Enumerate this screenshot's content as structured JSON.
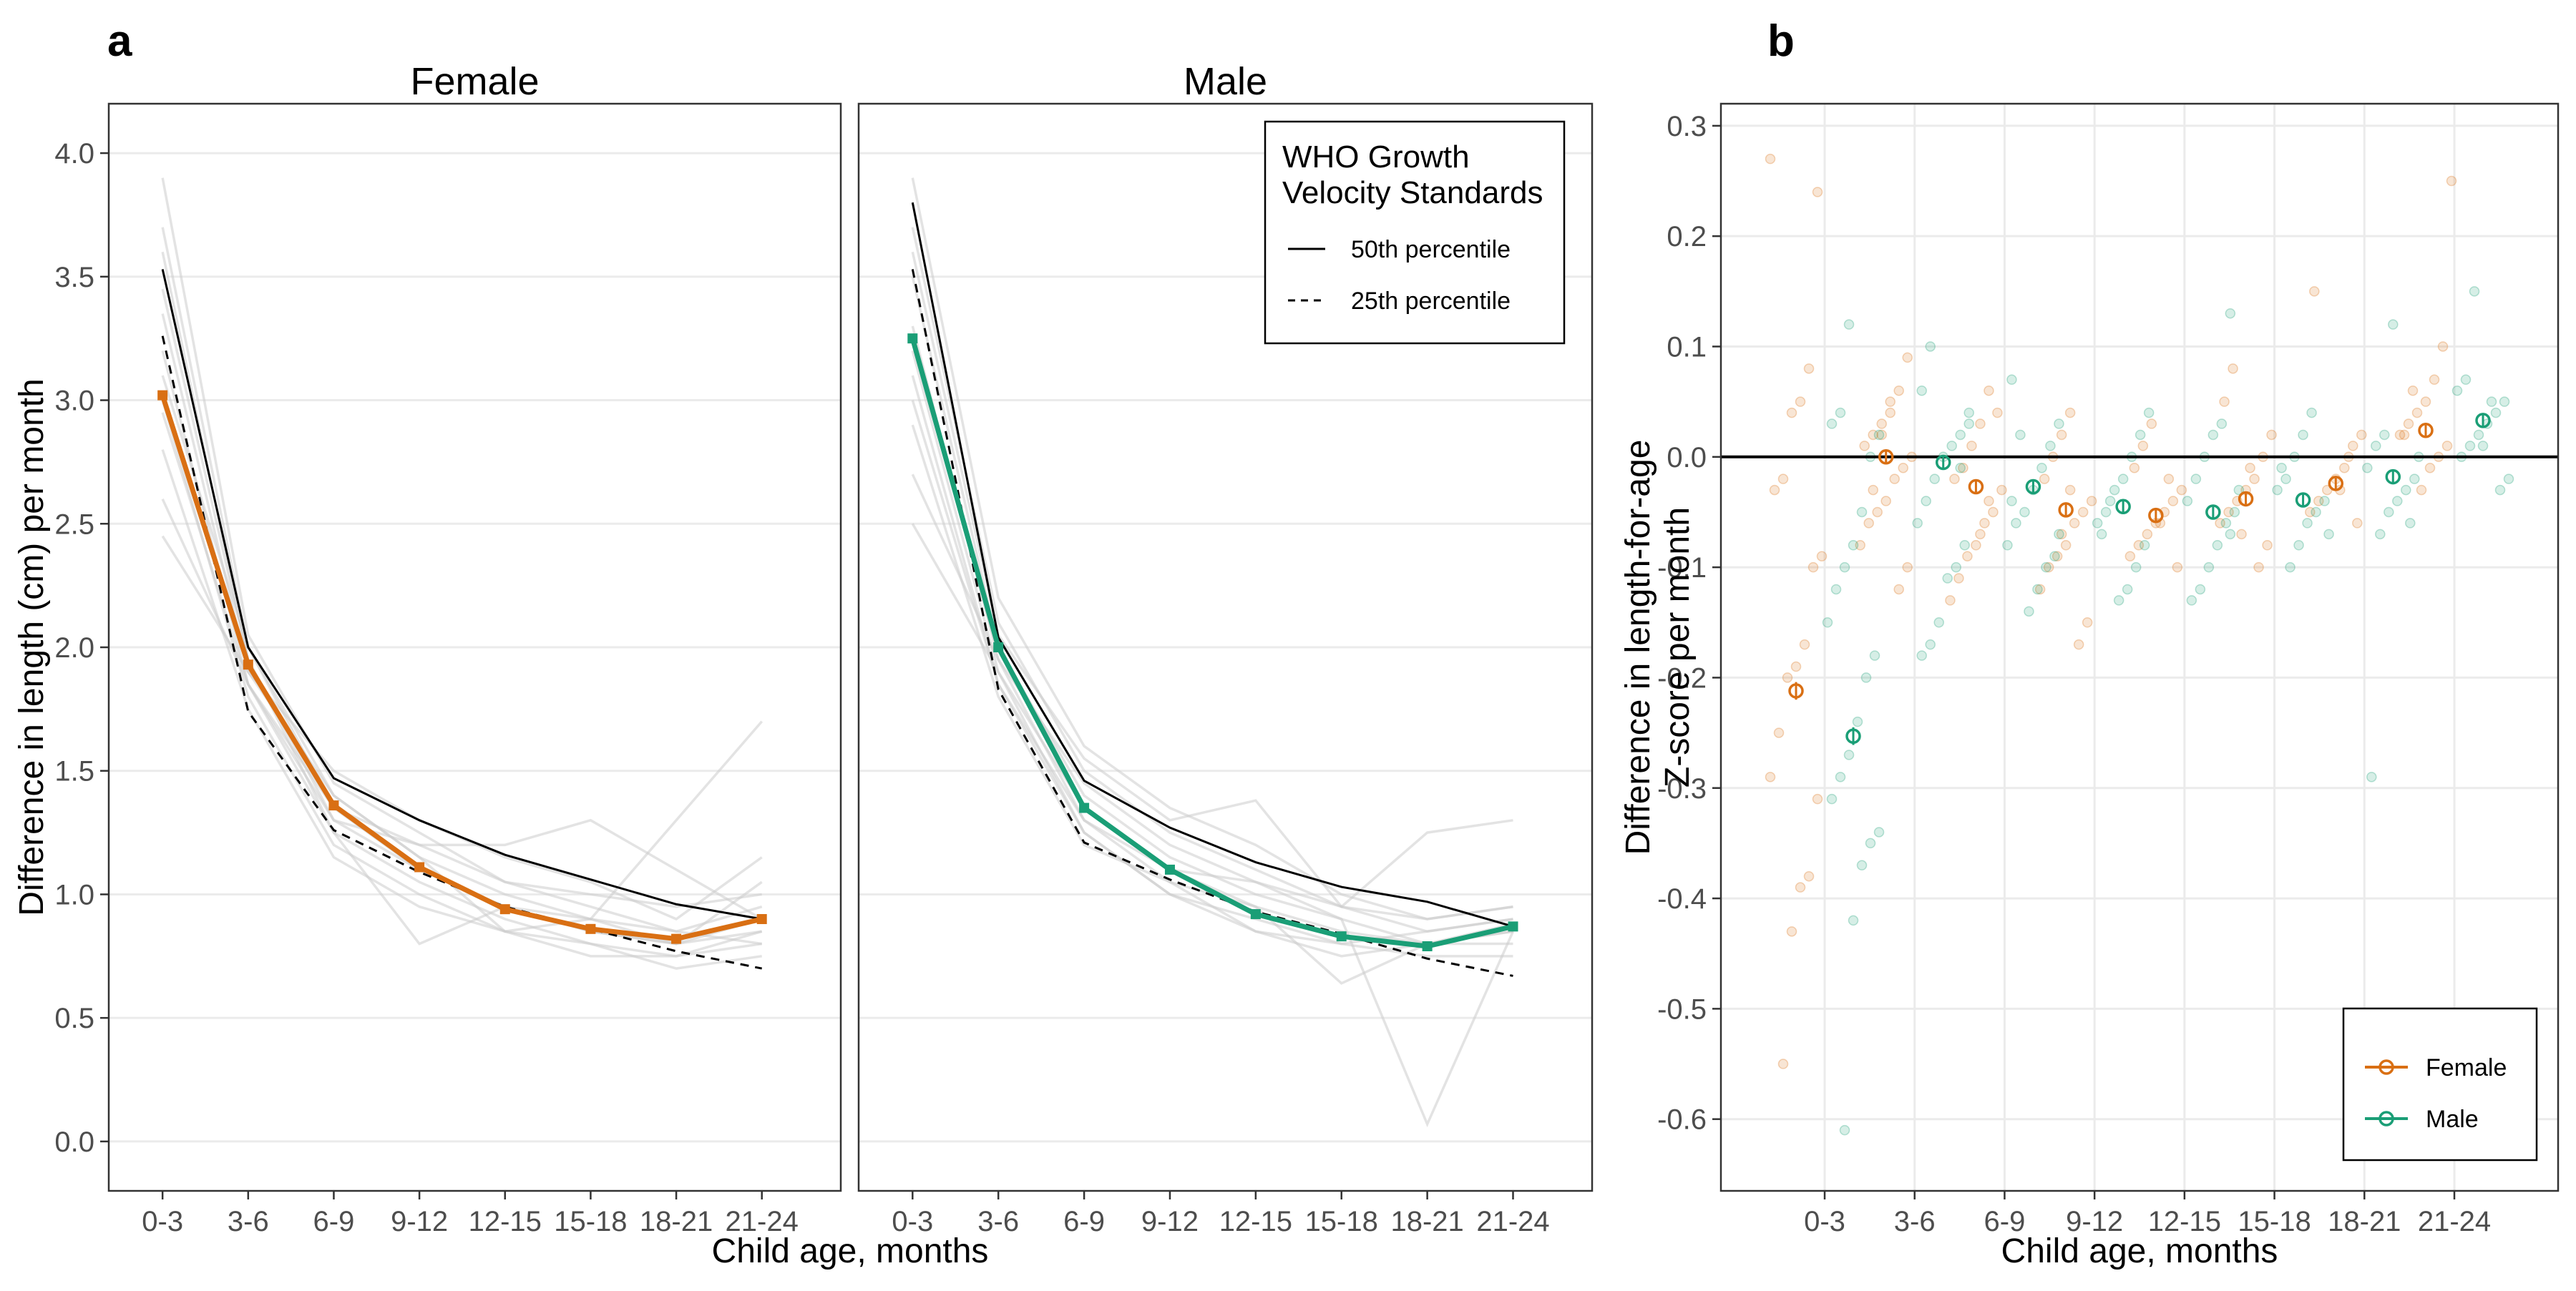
{
  "figure": {
    "panel_a_letter": "a",
    "panel_b_letter": "b"
  },
  "chart_data": [
    {
      "type": "line",
      "panel": "a",
      "facets": [
        "Female",
        "Male"
      ],
      "categories": [
        "0-3",
        "3-6",
        "6-9",
        "9-12",
        "12-15",
        "15-18",
        "18-21",
        "21-24"
      ],
      "xlabel": "Child age, months",
      "ylabel": "Difference in length (cm) per month",
      "ylim": [
        -0.2,
        4.2
      ],
      "yticks": [
        0.0,
        0.5,
        1.0,
        1.5,
        2.0,
        2.5,
        3.0,
        3.5,
        4.0
      ],
      "tick_labels": [
        "0.0",
        "0.5",
        "1.0",
        "1.5",
        "2.0",
        "2.5",
        "3.0",
        "3.5",
        "4.0"
      ],
      "grid": true,
      "legend": {
        "title_line1": "WHO Growth",
        "title_line2": "Velocity Standards",
        "items": [
          "50th percentile",
          "25th percentile"
        ],
        "placement": "top-right of Male facet"
      },
      "colors": {
        "Female": "#d96f13",
        "Male": "#1a9e76",
        "individual": "#cccccc",
        "who": "#000000"
      },
      "series": [
        {
          "name": "Female",
          "values": [
            3.02,
            1.93,
            1.36,
            1.11,
            0.94,
            0.86,
            0.82,
            0.9
          ]
        },
        {
          "name": "Male",
          "values": [
            3.25,
            2.0,
            1.35,
            1.1,
            0.92,
            0.83,
            0.79,
            0.87
          ]
        }
      ],
      "who_reference": {
        "Female": {
          "p50": [
            3.53,
            2.0,
            1.47,
            1.3,
            1.16,
            1.06,
            0.96,
            0.9
          ],
          "p25": [
            3.26,
            1.74,
            1.26,
            1.09,
            0.95,
            0.86,
            0.77,
            0.7
          ]
        },
        "Male": {
          "p50": [
            3.8,
            2.04,
            1.46,
            1.27,
            1.13,
            1.03,
            0.97,
            0.87
          ],
          "p25": [
            3.53,
            1.83,
            1.21,
            1.06,
            0.93,
            0.84,
            0.74,
            0.67
          ]
        }
      },
      "individual_lines": {
        "Female": [
          [
            3.9,
            2.05,
            1.45,
            1.25,
            1.05,
            0.95,
            0.85,
            0.95
          ],
          [
            3.7,
            2.0,
            1.4,
            1.15,
            1.0,
            0.9,
            0.8,
            0.85
          ],
          [
            3.45,
            1.95,
            1.3,
            1.1,
            0.95,
            0.85,
            0.8,
            0.9
          ],
          [
            3.2,
            1.85,
            1.25,
            1.05,
            0.9,
            0.8,
            0.75,
            0.8
          ],
          [
            3.0,
            1.8,
            1.2,
            1.0,
            0.85,
            0.8,
            0.7,
            0.75
          ],
          [
            2.8,
            1.75,
            1.15,
            0.95,
            0.85,
            0.75,
            0.75,
            0.85
          ],
          [
            2.6,
            1.85,
            1.35,
            1.2,
            1.05,
            1.0,
            0.95,
            1.0
          ],
          [
            2.45,
            1.9,
            1.5,
            1.3,
            1.15,
            1.05,
            0.9,
            1.15
          ],
          [
            3.1,
            2.0,
            1.35,
            1.1,
            0.95,
            0.9,
            1.3,
            1.7
          ],
          [
            2.95,
            1.85,
            1.3,
            1.2,
            1.2,
            1.3,
            1.1,
            0.9
          ],
          [
            3.6,
            1.95,
            1.25,
            0.8,
            0.95,
            0.85,
            0.8,
            1.05
          ],
          [
            3.35,
            1.9,
            1.4,
            1.15,
            0.85,
            0.9,
            0.85,
            0.8
          ]
        ],
        "Male": [
          [
            3.9,
            2.2,
            1.6,
            1.35,
            1.2,
            1.0,
            0.9,
            0.95
          ],
          [
            3.7,
            2.1,
            1.5,
            1.25,
            1.1,
            0.95,
            0.85,
            0.9
          ],
          [
            3.5,
            2.0,
            1.4,
            1.15,
            1.0,
            0.9,
            0.8,
            0.85
          ],
          [
            3.3,
            1.95,
            1.3,
            1.05,
            0.95,
            0.85,
            0.8,
            0.8
          ],
          [
            3.1,
            1.85,
            1.25,
            1.0,
            0.9,
            0.8,
            0.75,
            0.75
          ],
          [
            2.9,
            1.8,
            1.2,
            1.05,
            0.85,
            0.8,
            0.85,
            0.9
          ],
          [
            2.7,
            1.95,
            1.45,
            1.2,
            1.05,
            0.95,
            1.25,
            1.3
          ],
          [
            2.5,
            1.9,
            1.35,
            1.1,
            1.05,
            0.9,
            0.07,
            0.85
          ],
          [
            3.6,
            2.05,
            1.55,
            1.3,
            1.38,
            0.95,
            0.9,
            0.95
          ],
          [
            3.2,
            1.9,
            1.25,
            1.0,
            0.85,
            0.75,
            0.8,
            0.85
          ],
          [
            3.0,
            1.85,
            1.3,
            1.1,
            0.95,
            0.64,
            0.8,
            0.88
          ]
        ]
      }
    },
    {
      "type": "scatter",
      "panel": "b",
      "categories": [
        "0-3",
        "3-6",
        "6-9",
        "9-12",
        "12-15",
        "15-18",
        "18-21",
        "21-24"
      ],
      "xlabel": "Child age, months",
      "ylabel_line1": "Difference in length-for-age",
      "ylabel_line2": "Z-score per month",
      "ylim": [
        -0.665,
        0.32
      ],
      "yticks": [
        -0.6,
        -0.5,
        -0.4,
        -0.3,
        -0.2,
        -0.1,
        0.0,
        0.1,
        0.2,
        0.3
      ],
      "tick_labels": [
        "-0.6",
        "-0.5",
        "-0.4",
        "-0.3",
        "-0.2",
        "-0.1",
        "0.0",
        "0.1",
        "0.2",
        "0.3"
      ],
      "grid": true,
      "reference_line": 0.0,
      "legend": {
        "items": [
          "Female",
          "Male"
        ],
        "placement": "bottom-right"
      },
      "colors": {
        "Female": "#d96f13",
        "Male": "#1a9e76"
      },
      "series": [
        {
          "name": "Female",
          "means": [
            -0.212,
            0.0,
            -0.027,
            -0.048,
            -0.053,
            -0.038,
            -0.024,
            0.024
          ],
          "ci_halfwidth": [
            0.008,
            0.006,
            0.006,
            0.006,
            0.006,
            0.006,
            0.006,
            0.006
          ],
          "points": [
            [
              0.27,
              0.24,
              0.08,
              0.05,
              0.04,
              -0.02,
              -0.03,
              -0.09,
              -0.1,
              -0.17,
              -0.19,
              -0.2,
              -0.25,
              -0.29,
              -0.31,
              -0.38,
              -0.39,
              -0.43,
              -0.55
            ],
            [
              0.09,
              0.06,
              0.04,
              0.03,
              0.02,
              0.01,
              0.0,
              -0.01,
              -0.02,
              -0.04,
              -0.05,
              -0.06,
              -0.08,
              -0.1,
              -0.12,
              0.05,
              0.02,
              -0.03
            ],
            [
              0.06,
              0.03,
              0.01,
              -0.01,
              -0.02,
              -0.03,
              -0.05,
              -0.06,
              -0.08,
              -0.09,
              -0.11,
              -0.13,
              0.04,
              -0.04,
              -0.07
            ],
            [
              0.04,
              0.02,
              0.0,
              -0.02,
              -0.04,
              -0.05,
              -0.06,
              -0.08,
              -0.09,
              -0.1,
              -0.12,
              -0.15,
              -0.17,
              -0.03,
              -0.07
            ],
            [
              0.03,
              0.01,
              -0.01,
              -0.03,
              -0.04,
              -0.05,
              -0.06,
              -0.07,
              -0.08,
              -0.09,
              -0.1,
              -0.02,
              -0.06
            ],
            [
              0.08,
              0.05,
              0.02,
              0.0,
              -0.02,
              -0.03,
              -0.04,
              -0.05,
              -0.06,
              -0.08,
              -0.1,
              -0.01,
              -0.07
            ],
            [
              0.15,
              0.02,
              0.01,
              -0.01,
              -0.02,
              -0.03,
              -0.04,
              -0.05,
              -0.06,
              0.0,
              -0.03
            ],
            [
              0.25,
              0.1,
              0.07,
              0.05,
              0.04,
              0.03,
              0.02,
              0.01,
              0.0,
              -0.01,
              -0.03,
              0.06,
              0.02
            ]
          ]
        },
        {
          "name": "Male",
          "means": [
            -0.253,
            -0.005,
            -0.027,
            -0.045,
            -0.05,
            -0.039,
            -0.018,
            0.033
          ],
          "ci_halfwidth": [
            0.008,
            0.006,
            0.006,
            0.006,
            0.006,
            0.006,
            0.006,
            0.006
          ],
          "points": [
            [
              0.12,
              0.04,
              0.03,
              0.02,
              0.0,
              -0.05,
              -0.08,
              -0.1,
              -0.12,
              -0.15,
              -0.18,
              -0.2,
              -0.24,
              -0.27,
              -0.29,
              -0.31,
              -0.34,
              -0.35,
              -0.37,
              -0.42,
              -0.61
            ],
            [
              0.1,
              0.06,
              0.04,
              0.02,
              0.01,
              0.0,
              -0.02,
              -0.04,
              -0.06,
              -0.08,
              -0.1,
              -0.11,
              -0.15,
              -0.17,
              -0.18,
              0.03,
              -0.01
            ],
            [
              0.07,
              0.03,
              0.01,
              -0.01,
              -0.03,
              -0.05,
              -0.06,
              -0.08,
              -0.09,
              -0.1,
              -0.12,
              -0.14,
              0.02,
              -0.04,
              -0.07
            ],
            [
              0.04,
              0.02,
              0.0,
              -0.02,
              -0.03,
              -0.05,
              -0.06,
              -0.08,
              -0.1,
              -0.12,
              -0.13,
              -0.04,
              -0.07
            ],
            [
              0.13,
              0.03,
              0.02,
              0.0,
              -0.02,
              -0.04,
              -0.05,
              -0.06,
              -0.08,
              -0.1,
              -0.12,
              -0.13,
              -0.03,
              -0.07
            ],
            [
              0.04,
              0.02,
              0.0,
              -0.02,
              -0.03,
              -0.04,
              -0.05,
              -0.06,
              -0.08,
              -0.1,
              -0.01,
              -0.07
            ],
            [
              0.12,
              0.02,
              0.01,
              -0.01,
              -0.02,
              -0.03,
              -0.04,
              -0.05,
              -0.07,
              -0.29,
              0.0,
              -0.06
            ],
            [
              0.15,
              0.07,
              0.06,
              0.05,
              0.04,
              0.03,
              0.02,
              0.01,
              0.0,
              -0.02,
              -0.03,
              0.05,
              0.01
            ]
          ]
        }
      ]
    }
  ]
}
